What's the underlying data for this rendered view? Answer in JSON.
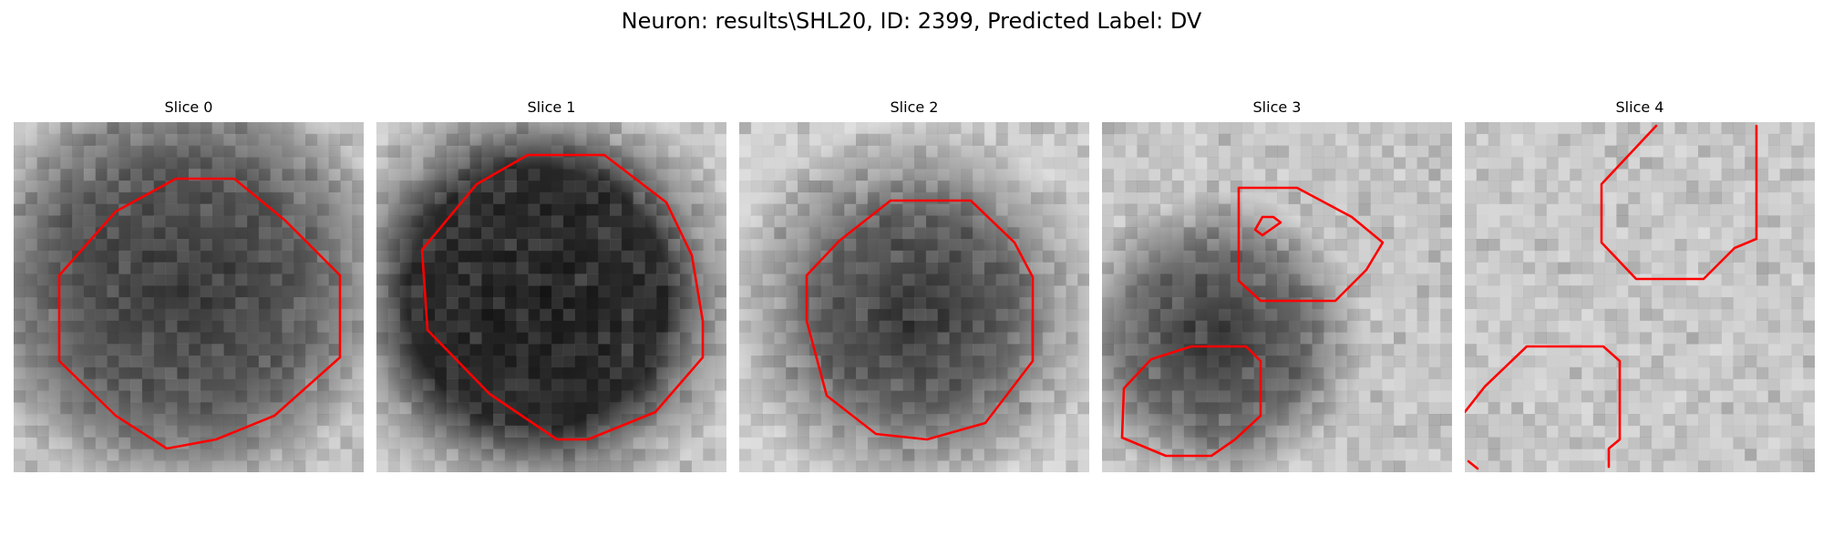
{
  "figure": {
    "title": "Neuron: results\\SHL20, ID: 2399, Predicted Label: DV",
    "contour_color": "#ff0000",
    "colormap": "gray"
  },
  "slices": [
    {
      "title": "Slice 0"
    },
    {
      "title": "Slice 1"
    },
    {
      "title": "Slice 2"
    },
    {
      "title": "Slice 3"
    },
    {
      "title": "Slice 4"
    }
  ]
}
